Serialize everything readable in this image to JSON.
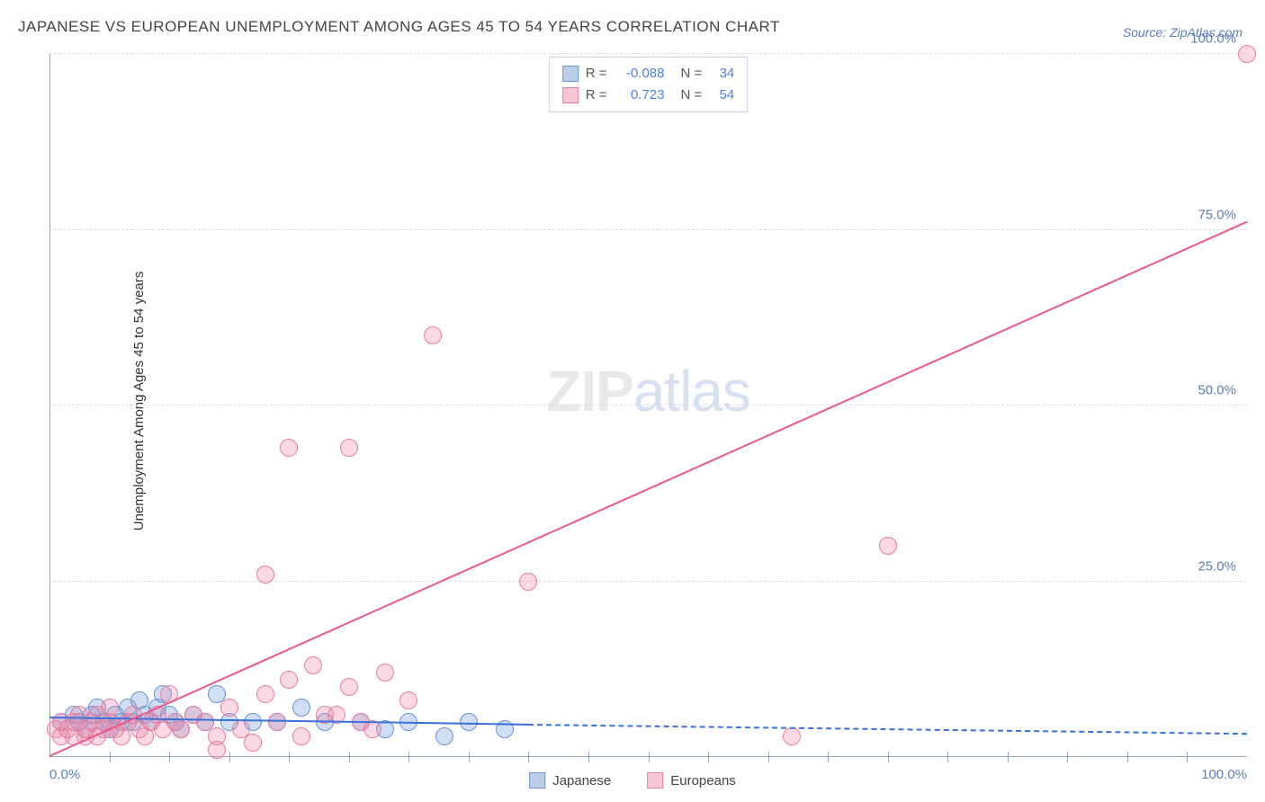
{
  "title": "JAPANESE VS EUROPEAN UNEMPLOYMENT AMONG AGES 45 TO 54 YEARS CORRELATION CHART",
  "source": "Source: ZipAtlas.com",
  "ylabel": "Unemployment Among Ages 45 to 54 years",
  "watermark_zip": "ZIP",
  "watermark_atlas": "atlas",
  "chart": {
    "type": "scatter",
    "xlim": [
      0,
      100
    ],
    "ylim": [
      0,
      100
    ],
    "y_ticks": [
      25,
      50,
      75,
      100
    ],
    "y_tick_labels": [
      "25.0%",
      "50.0%",
      "75.0%",
      "100.0%"
    ],
    "x_tick_0": "0.0%",
    "x_tick_100": "100.0%",
    "x_minor_ticks": [
      5,
      10,
      15,
      20,
      25,
      30,
      35,
      40,
      45,
      50,
      55,
      60,
      65,
      70,
      75,
      80,
      85,
      90,
      95
    ],
    "grid_color": "#dddddd",
    "axis_color": "#95a5c5",
    "background_color": "#ffffff",
    "series": [
      {
        "name": "Japanese",
        "color_fill": "rgba(120,160,220,0.35)",
        "color_stroke": "#6a93d0",
        "marker_radius": 10,
        "R": "-0.088",
        "N": "34",
        "trend": {
          "x1": 0,
          "y1": 5.5,
          "x2": 40,
          "y2": 4.5,
          "extend_to_x": 100,
          "extend_y": 3.2,
          "color": "#3a6fd8"
        },
        "points": [
          [
            1,
            5
          ],
          [
            2,
            6
          ],
          [
            2.5,
            5
          ],
          [
            3,
            4
          ],
          [
            3.5,
            6
          ],
          [
            4,
            7
          ],
          [
            4.5,
            5
          ],
          [
            5,
            4
          ],
          [
            5.5,
            6
          ],
          [
            6,
            5
          ],
          [
            6.5,
            7
          ],
          [
            7,
            5
          ],
          [
            7.5,
            8
          ],
          [
            8,
            6
          ],
          [
            8.5,
            5
          ],
          [
            9,
            7
          ],
          [
            9.5,
            9
          ],
          [
            10,
            6
          ],
          [
            10.5,
            5
          ],
          [
            11,
            4
          ],
          [
            12,
            6
          ],
          [
            13,
            5
          ],
          [
            14,
            9
          ],
          [
            15,
            5
          ],
          [
            17,
            5
          ],
          [
            19,
            5
          ],
          [
            21,
            7
          ],
          [
            23,
            5
          ],
          [
            26,
            5
          ],
          [
            28,
            4
          ],
          [
            30,
            5
          ],
          [
            33,
            3
          ],
          [
            35,
            5
          ],
          [
            38,
            4
          ]
        ]
      },
      {
        "name": "Europeans",
        "color_fill": "rgba(240,130,165,0.30)",
        "color_stroke": "#e57da0",
        "marker_radius": 10,
        "R": "0.723",
        "N": "54",
        "trend": {
          "x1": 0,
          "y1": 0,
          "x2": 100,
          "y2": 76,
          "color": "#e8588a"
        },
        "points": [
          [
            0.5,
            4
          ],
          [
            1,
            3
          ],
          [
            1,
            5
          ],
          [
            1.5,
            4
          ],
          [
            2,
            3
          ],
          [
            2,
            5
          ],
          [
            2.5,
            6
          ],
          [
            3,
            4
          ],
          [
            3,
            3
          ],
          [
            3.5,
            5
          ],
          [
            4,
            6
          ],
          [
            4,
            3
          ],
          [
            4.5,
            4
          ],
          [
            5,
            5
          ],
          [
            5,
            7
          ],
          [
            5.5,
            4
          ],
          [
            6,
            3
          ],
          [
            6.5,
            5
          ],
          [
            7,
            6
          ],
          [
            7.5,
            4
          ],
          [
            8,
            3
          ],
          [
            8.5,
            5
          ],
          [
            9,
            6
          ],
          [
            9.5,
            4
          ],
          [
            10,
            9
          ],
          [
            10.5,
            5
          ],
          [
            11,
            4
          ],
          [
            12,
            6
          ],
          [
            13,
            5
          ],
          [
            14,
            3
          ],
          [
            15,
            7
          ],
          [
            16,
            4
          ],
          [
            18,
            9
          ],
          [
            19,
            5
          ],
          [
            20,
            11
          ],
          [
            22,
            13
          ],
          [
            23,
            6
          ],
          [
            25,
            10
          ],
          [
            26,
            5
          ],
          [
            28,
            12
          ],
          [
            30,
            8
          ],
          [
            20,
            44
          ],
          [
            25,
            44
          ],
          [
            18,
            26
          ],
          [
            40,
            25
          ],
          [
            32,
            60
          ],
          [
            62,
            3
          ],
          [
            70,
            30
          ],
          [
            100,
            100
          ],
          [
            14,
            1
          ],
          [
            17,
            2
          ],
          [
            21,
            3
          ],
          [
            24,
            6
          ],
          [
            27,
            4
          ]
        ]
      }
    ],
    "legend": {
      "items": [
        {
          "label": "Japanese",
          "swatch": "blue"
        },
        {
          "label": "Europeans",
          "swatch": "pink"
        }
      ]
    }
  }
}
